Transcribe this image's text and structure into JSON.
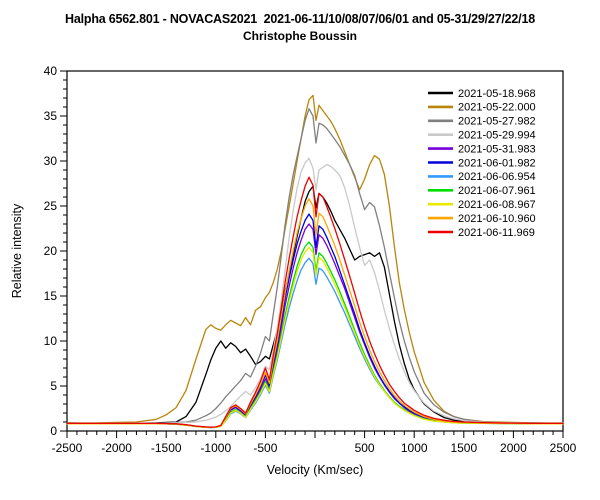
{
  "chart_data": {
    "type": "line",
    "title": "Halpha 6562.801 - NOVACAS2021  2021-06-11/10/08/07/06/01 and 05-31/29/27/22/18",
    "subtitle": "Christophe Boussin",
    "xlabel": "Velocity (Km/sec)",
    "ylabel": "Relative intensity",
    "xlim": [
      -2500,
      2500
    ],
    "ylim": [
      0,
      40
    ],
    "x_tick_labels": [
      -2500,
      -2000,
      -1500,
      -1000,
      -500,
      500,
      1000,
      1500,
      2000,
      2500
    ],
    "x_major_tick_step": 500,
    "x_minor_tick_step": 100,
    "y_tick_labels": [
      0,
      5,
      10,
      15,
      20,
      25,
      30,
      35,
      40
    ],
    "y_minor_tick_step": 1,
    "grid": false,
    "legend_position": "inside-top-right",
    "x": [
      -2500,
      -2200,
      -2000,
      -1800,
      -1600,
      -1500,
      -1400,
      -1300,
      -1200,
      -1100,
      -1050,
      -1000,
      -950,
      -900,
      -850,
      -800,
      -750,
      -700,
      -650,
      -600,
      -550,
      -500,
      -460,
      -420,
      -380,
      -340,
      -300,
      -260,
      -220,
      -180,
      -140,
      -100,
      -60,
      -20,
      10,
      40,
      80,
      120,
      160,
      200,
      250,
      300,
      350,
      400,
      450,
      500,
      550,
      600,
      650,
      700,
      750,
      800,
      850,
      900,
      950,
      1000,
      1100,
      1200,
      1300,
      1400,
      1500,
      1700,
      2000,
      2200,
      2500
    ],
    "series": [
      {
        "name": "2021-05-18.968",
        "color": "#000000",
        "values": [
          0.9,
          0.85,
          0.9,
          0.85,
          0.9,
          0.95,
          1.0,
          1.6,
          3.2,
          6.3,
          7.9,
          9.2,
          10.0,
          9.2,
          9.8,
          9.4,
          8.7,
          9.1,
          8.3,
          7.4,
          7.7,
          8.3,
          8.0,
          9.6,
          11.2,
          13.2,
          15.6,
          17.6,
          19.6,
          21.6,
          23.6,
          25.5,
          26.6,
          27.2,
          24.8,
          26.4,
          26.0,
          25.3,
          24.4,
          23.4,
          22.4,
          21.4,
          20.2,
          19.0,
          19.4,
          19.6,
          19.8,
          19.4,
          19.8,
          18.2,
          15.2,
          12.2,
          9.6,
          7.5,
          5.8,
          4.6,
          3.0,
          2.1,
          1.5,
          1.2,
          1.05,
          0.95,
          0.9,
          0.9,
          0.85
        ]
      },
      {
        "name": "2021-05-22.000",
        "color": "#B8860B",
        "values": [
          0.9,
          0.9,
          0.95,
          1.0,
          1.3,
          1.8,
          2.6,
          4.5,
          8.0,
          11.3,
          11.8,
          11.4,
          11.2,
          11.8,
          12.3,
          12.0,
          11.7,
          12.6,
          11.8,
          13.4,
          13.8,
          14.8,
          15.4,
          16.5,
          18.0,
          20.0,
          22.5,
          25.0,
          27.5,
          30.0,
          32.5,
          35.0,
          36.8,
          37.3,
          34.5,
          36.2,
          35.6,
          35.0,
          34.4,
          33.6,
          32.4,
          31.0,
          29.6,
          28.2,
          26.8,
          28.0,
          29.6,
          30.6,
          30.2,
          28.5,
          25.0,
          20.5,
          16.5,
          13.5,
          11.0,
          8.8,
          5.4,
          3.4,
          2.2,
          1.6,
          1.3,
          1.05,
          0.95,
          0.9,
          0.9
        ]
      },
      {
        "name": "2021-05-27.982",
        "color": "#808080",
        "values": [
          0.85,
          0.85,
          0.85,
          0.85,
          0.85,
          0.9,
          0.95,
          1.0,
          1.2,
          1.7,
          2.0,
          2.5,
          3.1,
          3.8,
          4.4,
          5.0,
          5.6,
          6.4,
          6.0,
          7.2,
          8.6,
          10.5,
          10.0,
          13.0,
          16.0,
          19.5,
          23.0,
          26.0,
          28.5,
          30.5,
          32.5,
          34.5,
          35.8,
          35.0,
          32.0,
          34.2,
          34.0,
          33.6,
          33.0,
          32.4,
          31.6,
          30.6,
          29.6,
          28.4,
          26.4,
          24.6,
          25.4,
          24.9,
          22.8,
          20.4,
          17.6,
          14.8,
          12.2,
          10.0,
          8.2,
          6.6,
          4.2,
          2.9,
          2.1,
          1.6,
          1.3,
          1.0,
          0.9,
          0.85,
          0.85
        ]
      },
      {
        "name": "2021-05-29.994",
        "color": "#C9C9C9",
        "values": [
          0.85,
          0.85,
          0.85,
          0.85,
          0.85,
          0.85,
          0.9,
          0.95,
          1.0,
          1.2,
          1.35,
          1.55,
          1.85,
          2.25,
          2.75,
          3.3,
          3.9,
          4.4,
          4.0,
          4.8,
          5.8,
          7.2,
          6.8,
          9.0,
          11.5,
          14.5,
          18.0,
          21.5,
          24.5,
          27.0,
          28.8,
          29.8,
          30.3,
          29.2,
          26.8,
          29.0,
          29.3,
          29.6,
          29.4,
          29.0,
          28.4,
          27.0,
          25.0,
          22.6,
          20.4,
          18.4,
          19.0,
          17.6,
          15.6,
          13.4,
          11.4,
          9.6,
          8.0,
          6.6,
          5.4,
          4.5,
          3.1,
          2.2,
          1.7,
          1.35,
          1.15,
          0.95,
          0.9,
          0.85,
          0.85
        ]
      },
      {
        "name": "2021-05-31.983",
        "color": "#7700DD",
        "values": [
          0.8,
          0.8,
          0.8,
          0.8,
          0.8,
          0.8,
          0.78,
          0.68,
          0.52,
          0.42,
          0.4,
          0.42,
          0.55,
          1.3,
          2.3,
          2.6,
          2.2,
          1.7,
          2.7,
          3.6,
          4.6,
          5.8,
          4.8,
          7.0,
          9.0,
          11.5,
          14.0,
          16.1,
          18.1,
          19.8,
          21.2,
          22.4,
          23.0,
          22.4,
          19.6,
          21.8,
          21.4,
          20.6,
          19.6,
          18.6,
          17.2,
          15.8,
          14.2,
          12.6,
          11.0,
          9.6,
          8.2,
          7.0,
          6.0,
          5.1,
          4.3,
          3.6,
          3.1,
          2.6,
          2.2,
          1.9,
          1.5,
          1.2,
          1.05,
          0.95,
          0.9,
          0.85,
          0.85,
          0.8,
          0.8
        ]
      },
      {
        "name": "2021-06-01.982",
        "color": "#0000DD",
        "values": [
          0.8,
          0.8,
          0.8,
          0.8,
          0.8,
          0.8,
          0.78,
          0.68,
          0.52,
          0.42,
          0.4,
          0.44,
          0.58,
          1.4,
          2.4,
          2.7,
          2.3,
          1.8,
          2.9,
          3.8,
          4.9,
          6.2,
          5.1,
          7.4,
          9.6,
          12.2,
          14.8,
          17.0,
          19.0,
          20.8,
          22.2,
          23.4,
          24.1,
          23.4,
          20.4,
          22.8,
          22.4,
          21.5,
          20.4,
          19.4,
          17.8,
          16.2,
          14.6,
          13.0,
          11.3,
          9.8,
          8.4,
          7.2,
          6.1,
          5.2,
          4.4,
          3.7,
          3.1,
          2.7,
          2.3,
          2.0,
          1.55,
          1.25,
          1.05,
          0.95,
          0.9,
          0.85,
          0.85,
          0.8,
          0.8
        ]
      },
      {
        "name": "2021-06-06.954",
        "color": "#3399FF",
        "values": [
          0.8,
          0.8,
          0.8,
          0.8,
          0.8,
          0.8,
          0.75,
          0.65,
          0.5,
          0.4,
          0.38,
          0.4,
          0.5,
          1.1,
          1.9,
          2.2,
          1.9,
          1.5,
          2.3,
          3.1,
          4.0,
          5.1,
          4.2,
          6.1,
          7.9,
          9.9,
          11.9,
          13.7,
          15.3,
          16.7,
          17.9,
          18.7,
          19.2,
          18.6,
          16.3,
          18.1,
          17.8,
          17.1,
          16.3,
          15.5,
          14.3,
          13.1,
          11.8,
          10.5,
          9.2,
          8.0,
          6.9,
          5.9,
          5.1,
          4.4,
          3.7,
          3.15,
          2.7,
          2.3,
          2.0,
          1.75,
          1.35,
          1.1,
          1.0,
          0.92,
          0.88,
          0.85,
          0.82,
          0.8,
          0.8
        ]
      },
      {
        "name": "2021-06-07.961",
        "color": "#00DD00",
        "values": [
          0.8,
          0.8,
          0.8,
          0.8,
          0.8,
          0.8,
          0.76,
          0.66,
          0.5,
          0.4,
          0.39,
          0.41,
          0.52,
          1.2,
          2.1,
          2.4,
          2.0,
          1.6,
          2.5,
          3.4,
          4.3,
          5.5,
          4.5,
          6.6,
          8.5,
          10.7,
          12.9,
          14.9,
          16.7,
          18.3,
          19.6,
          20.5,
          21.0,
          20.4,
          17.8,
          19.8,
          19.4,
          18.6,
          17.7,
          16.8,
          15.5,
          14.1,
          12.7,
          11.2,
          9.8,
          8.5,
          7.3,
          6.2,
          5.3,
          4.5,
          3.8,
          3.2,
          2.75,
          2.4,
          2.05,
          1.75,
          1.35,
          1.12,
          1.0,
          0.92,
          0.88,
          0.85,
          0.82,
          0.8,
          0.8
        ]
      },
      {
        "name": "2021-06-08.967",
        "color": "#E8E800",
        "values": [
          0.8,
          0.8,
          0.8,
          0.8,
          0.8,
          0.8,
          0.76,
          0.66,
          0.5,
          0.4,
          0.39,
          0.41,
          0.51,
          1.15,
          2.0,
          2.3,
          1.95,
          1.55,
          2.4,
          3.25,
          4.15,
          5.3,
          4.35,
          6.35,
          8.2,
          10.3,
          12.4,
          14.4,
          16.1,
          17.7,
          19.0,
          19.9,
          20.4,
          19.8,
          17.3,
          19.3,
          18.9,
          18.1,
          17.2,
          16.3,
          15.0,
          13.7,
          12.3,
          10.9,
          9.5,
          8.25,
          7.1,
          6.05,
          5.15,
          4.4,
          3.7,
          3.1,
          2.65,
          2.3,
          2.0,
          1.7,
          1.3,
          1.1,
          1.0,
          0.9,
          0.88,
          0.84,
          0.82,
          0.8,
          0.8
        ]
      },
      {
        "name": "2021-06-10.960",
        "color": "#FFA500",
        "values": [
          0.82,
          0.82,
          0.82,
          0.82,
          0.82,
          0.8,
          0.78,
          0.68,
          0.52,
          0.42,
          0.4,
          0.44,
          0.6,
          1.5,
          2.5,
          2.8,
          2.4,
          1.9,
          3.0,
          4.0,
          5.1,
          6.5,
          5.3,
          7.8,
          10.0,
          12.7,
          15.4,
          17.8,
          20.0,
          22.0,
          23.6,
          25.0,
          25.8,
          25.0,
          21.8,
          24.2,
          23.8,
          22.8,
          21.7,
          20.6,
          19.0,
          17.3,
          15.6,
          13.9,
          12.1,
          10.5,
          9.0,
          7.7,
          6.6,
          5.6,
          4.7,
          3.95,
          3.35,
          2.85,
          2.45,
          2.1,
          1.6,
          1.28,
          1.1,
          1.0,
          0.95,
          0.9,
          0.85,
          0.82,
          0.82
        ]
      },
      {
        "name": "2021-06-11.969",
        "color": "#EE0000",
        "values": [
          0.85,
          0.85,
          0.85,
          0.85,
          0.85,
          0.82,
          0.8,
          0.7,
          0.55,
          0.45,
          0.42,
          0.46,
          0.62,
          1.6,
          2.6,
          2.9,
          2.5,
          2.0,
          3.2,
          4.3,
          5.5,
          7.0,
          5.7,
          8.4,
          10.8,
          13.7,
          16.6,
          19.2,
          21.6,
          23.8,
          25.6,
          27.2,
          28.2,
          27.3,
          23.8,
          26.4,
          26.0,
          24.9,
          23.7,
          22.5,
          20.8,
          19.0,
          17.2,
          15.3,
          13.4,
          11.6,
          10.0,
          8.6,
          7.3,
          6.2,
          5.2,
          4.4,
          3.7,
          3.1,
          2.7,
          2.3,
          1.75,
          1.4,
          1.2,
          1.05,
          1.0,
          0.92,
          0.88,
          0.85,
          0.85
        ]
      }
    ]
  }
}
